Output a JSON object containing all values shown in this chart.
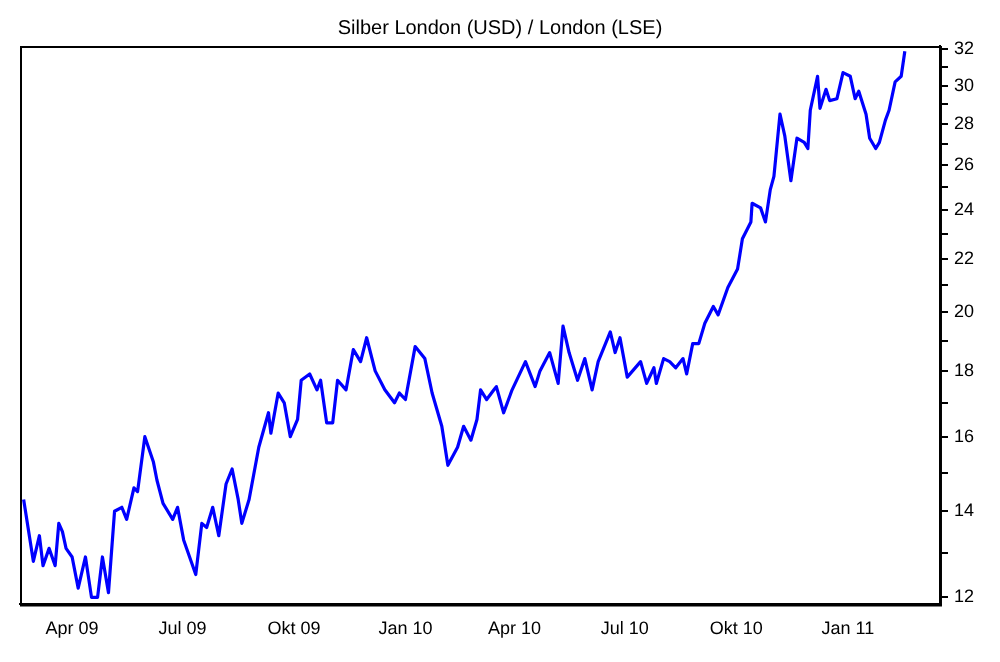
{
  "chart_data": {
    "type": "line",
    "title": "Silber London (USD) / London (LSE)",
    "log": "y",
    "grid": false,
    "legend": false,
    "marker": "none",
    "line_style": "solid",
    "xlim": [
      "2009-02-17",
      "2011-03-18"
    ],
    "xticks": [
      {
        "value": "2009-04-01",
        "label": "Apr 09"
      },
      {
        "value": "2009-07-01",
        "label": "Jul 09"
      },
      {
        "value": "2009-10-01",
        "label": "Okt 09"
      },
      {
        "value": "2010-01-01",
        "label": "Jan 10"
      },
      {
        "value": "2010-04-01",
        "label": "Apr 10"
      },
      {
        "value": "2010-07-01",
        "label": "Jul 10"
      },
      {
        "value": "2010-10-01",
        "label": "Okt 10"
      },
      {
        "value": "2011-01-01",
        "label": "Jan 11"
      }
    ],
    "ylim": [
      11.85,
      32.2
    ],
    "yticks": [
      12,
      {
        "value": 13,
        "label": null
      },
      14,
      {
        "value": 15,
        "label": null
      },
      16,
      {
        "value": 17,
        "label": null
      },
      18,
      {
        "value": 19,
        "label": null
      },
      20,
      {
        "value": 21,
        "label": null
      },
      22,
      {
        "value": 23,
        "label": null
      },
      24,
      {
        "value": 25,
        "label": null
      },
      26,
      {
        "value": 27,
        "label": null
      },
      28,
      {
        "value": 29,
        "label": null
      },
      30,
      {
        "value": 31,
        "label": null
      },
      32
    ],
    "x": [
      "2009-02-20",
      "2009-02-28",
      "2009-03-05",
      "2009-03-08",
      "2009-03-13",
      "2009-03-18",
      "2009-03-21",
      "2009-03-24",
      "2009-03-27",
      "2009-04-01",
      "2009-04-06",
      "2009-04-12",
      "2009-04-17",
      "2009-04-22",
      "2009-04-26",
      "2009-05-01",
      "2009-05-06",
      "2009-05-12",
      "2009-05-16",
      "2009-05-22",
      "2009-05-25",
      "2009-05-31",
      "2009-06-07",
      "2009-06-10",
      "2009-06-15",
      "2009-06-23",
      "2009-06-27",
      "2009-07-02",
      "2009-07-12",
      "2009-07-17",
      "2009-07-21",
      "2009-07-26",
      "2009-07-31",
      "2009-08-06",
      "2009-08-11",
      "2009-08-16",
      "2009-08-19",
      "2009-08-25",
      "2009-09-02",
      "2009-09-10",
      "2009-09-12",
      "2009-09-18",
      "2009-09-23",
      "2009-09-28",
      "2009-10-04",
      "2009-10-07",
      "2009-10-14",
      "2009-10-20",
      "2009-10-23",
      "2009-10-28",
      "2009-11-02",
      "2009-11-06",
      "2009-11-13",
      "2009-11-19",
      "2009-11-25",
      "2009-11-30",
      "2009-12-07",
      "2009-12-15",
      "2009-12-23",
      "2009-12-27",
      "2010-01-01",
      "2010-01-09",
      "2010-01-17",
      "2010-01-23",
      "2010-01-31",
      "2010-02-05",
      "2010-02-13",
      "2010-02-18",
      "2010-02-24",
      "2010-03-01",
      "2010-03-04",
      "2010-03-09",
      "2010-03-15",
      "2010-03-17",
      "2010-03-23",
      "2010-03-30",
      "2010-04-10",
      "2010-04-18",
      "2010-04-22",
      "2010-04-30",
      "2010-05-07",
      "2010-05-11",
      "2010-05-16",
      "2010-05-23",
      "2010-05-29",
      "2010-06-04",
      "2010-06-09",
      "2010-06-19",
      "2010-06-23",
      "2010-06-27",
      "2010-07-03",
      "2010-07-14",
      "2010-07-19",
      "2010-07-25",
      "2010-07-27",
      "2010-08-02",
      "2010-08-07",
      "2010-08-12",
      "2010-08-18",
      "2010-08-21",
      "2010-08-26",
      "2010-08-31",
      "2010-09-05",
      "2010-09-12",
      "2010-09-16",
      "2010-09-24",
      "2010-10-02",
      "2010-10-06",
      "2010-10-13",
      "2010-10-14",
      "2010-10-21",
      "2010-10-25",
      "2010-10-29",
      "2010-11-01",
      "2010-11-06",
      "2010-11-10",
      "2010-11-15",
      "2010-11-20",
      "2010-11-26",
      "2010-11-29",
      "2010-12-01",
      "2010-12-07",
      "2010-12-09",
      "2010-12-14",
      "2010-12-17",
      "2010-12-23",
      "2010-12-28",
      "2011-01-03",
      "2011-01-07",
      "2011-01-10",
      "2011-01-16",
      "2011-01-19",
      "2011-01-24",
      "2011-01-27",
      "2011-02-01",
      "2011-02-04",
      "2011-02-09",
      "2011-02-14",
      "2011-02-17"
    ],
    "series": [
      {
        "color": "#0000ff",
        "values": [
          14.3,
          12.8,
          13.4,
          12.7,
          13.1,
          12.7,
          13.7,
          13.5,
          13.1,
          12.9,
          12.2,
          12.9,
          12.0,
          12.0,
          12.9,
          12.1,
          14.0,
          14.1,
          13.8,
          14.6,
          14.5,
          16.0,
          15.3,
          14.8,
          14.2,
          13.8,
          14.1,
          13.3,
          12.5,
          13.7,
          13.6,
          14.1,
          13.4,
          14.7,
          15.1,
          14.3,
          13.7,
          14.3,
          15.7,
          16.7,
          16.1,
          17.3,
          17.0,
          16.0,
          16.5,
          17.7,
          17.9,
          17.4,
          17.7,
          16.4,
          16.4,
          17.7,
          17.4,
          18.7,
          18.3,
          19.1,
          18.0,
          17.4,
          17.0,
          17.3,
          17.1,
          18.8,
          18.4,
          17.3,
          16.3,
          15.2,
          15.7,
          16.3,
          15.9,
          16.5,
          17.4,
          17.1,
          17.4,
          17.5,
          16.7,
          17.4,
          18.3,
          17.5,
          18.0,
          18.6,
          17.6,
          19.5,
          18.6,
          17.7,
          18.4,
          17.4,
          18.3,
          19.3,
          18.6,
          19.1,
          17.8,
          18.3,
          17.6,
          18.1,
          17.6,
          18.4,
          18.3,
          18.1,
          18.4,
          17.9,
          18.9,
          18.9,
          19.6,
          20.2,
          19.9,
          20.9,
          21.6,
          22.8,
          23.5,
          24.3,
          24.1,
          23.5,
          24.9,
          25.5,
          28.5,
          27.4,
          25.3,
          27.3,
          27.1,
          26.8,
          28.7,
          30.5,
          28.8,
          29.8,
          29.2,
          29.3,
          30.7,
          30.5,
          29.3,
          29.7,
          28.5,
          27.3,
          26.8,
          27.1,
          28.2,
          28.7,
          30.2,
          30.5,
          31.9
        ]
      }
    ]
  }
}
